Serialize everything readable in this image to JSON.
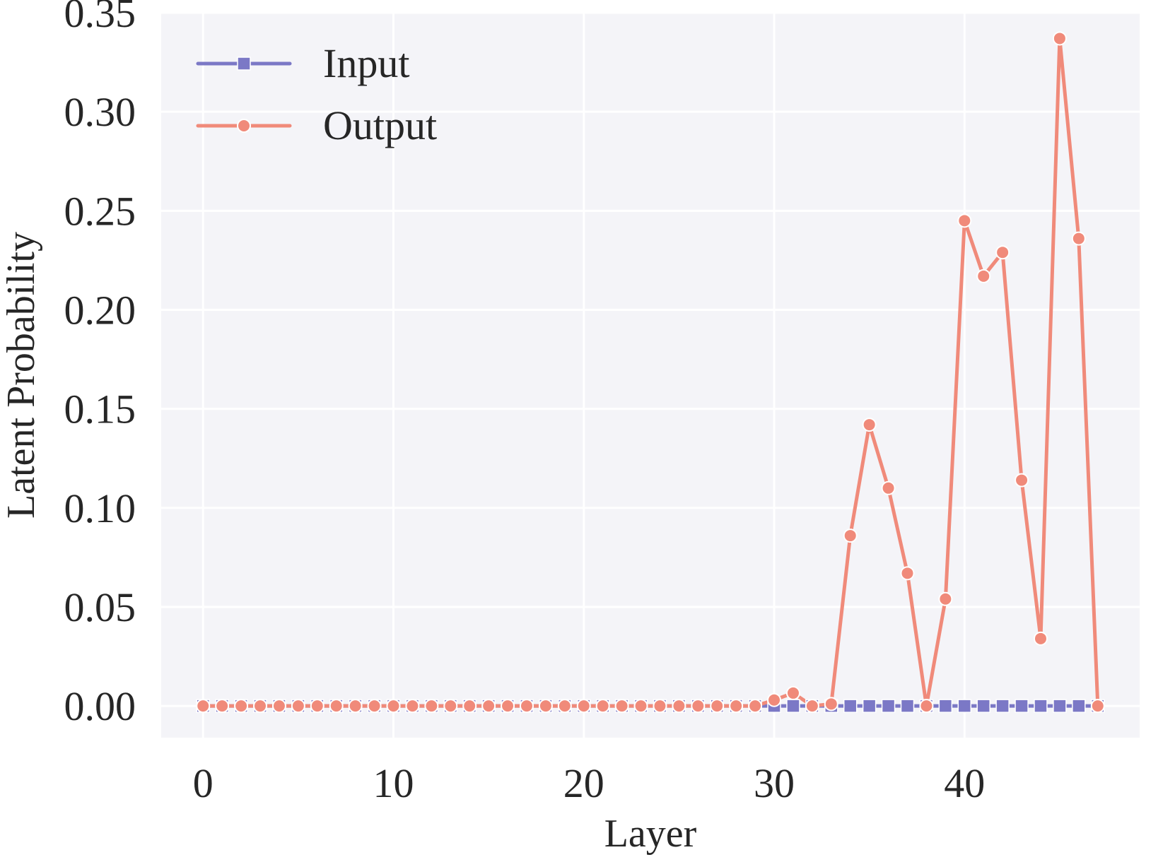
{
  "chart_data": {
    "type": "line",
    "xlabel": "Layer",
    "ylabel": "Latent Probability",
    "xlim": [
      -2.2,
      49.2
    ],
    "ylim": [
      -0.016,
      0.35
    ],
    "xticks": [
      0,
      10,
      20,
      30,
      40
    ],
    "xtick_labels": [
      "0",
      "10",
      "20",
      "30",
      "40"
    ],
    "yticks": [
      0.0,
      0.05,
      0.1,
      0.15,
      0.2,
      0.25,
      0.3,
      0.35
    ],
    "ytick_labels": [
      "0.00",
      "0.05",
      "0.10",
      "0.15",
      "0.20",
      "0.25",
      "0.30",
      "0.35"
    ],
    "grid": true,
    "legend_position": "top-left",
    "x": [
      0,
      1,
      2,
      3,
      4,
      5,
      6,
      7,
      8,
      9,
      10,
      11,
      12,
      13,
      14,
      15,
      16,
      17,
      18,
      19,
      20,
      21,
      22,
      23,
      24,
      25,
      26,
      27,
      28,
      29,
      30,
      31,
      32,
      33,
      34,
      35,
      36,
      37,
      38,
      39,
      40,
      41,
      42,
      43,
      44,
      45,
      46,
      47
    ],
    "series": [
      {
        "name": "Input",
        "color": "#7b78c6",
        "marker": "square",
        "values": [
          0,
          0,
          0,
          0,
          0,
          0,
          0,
          0,
          0,
          0,
          0,
          0,
          0,
          0,
          0,
          0,
          0,
          0,
          0,
          0,
          0,
          0,
          0,
          0,
          0,
          0,
          0,
          0,
          0,
          0,
          0,
          0,
          0,
          0,
          0,
          0,
          0,
          0,
          0,
          0,
          0,
          0,
          0,
          0,
          0,
          0,
          0,
          0
        ]
      },
      {
        "name": "Output",
        "color": "#f08a7a",
        "marker": "circle",
        "values": [
          0,
          0,
          0,
          0,
          0,
          0,
          0,
          0,
          0,
          0,
          0,
          0,
          0,
          0,
          0,
          0,
          0,
          0,
          0,
          0,
          0,
          0,
          0,
          0,
          0,
          0,
          0,
          0,
          0,
          0,
          0.003,
          0.0065,
          0,
          0.001,
          0.086,
          0.142,
          0.11,
          0.067,
          0,
          0.054,
          0.245,
          0.217,
          0.229,
          0.114,
          0.034,
          0.337,
          0.236,
          0
        ]
      }
    ]
  }
}
